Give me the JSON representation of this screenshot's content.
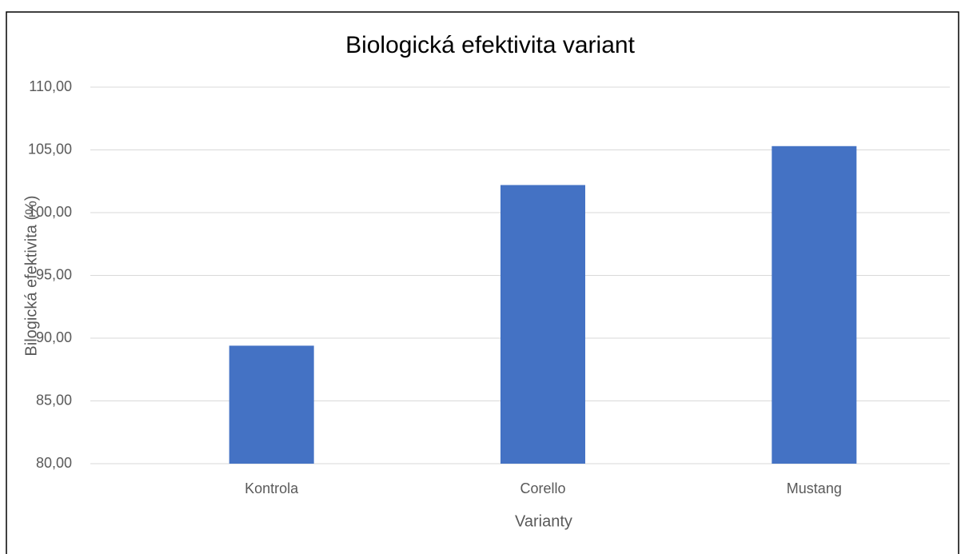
{
  "chart_data": {
    "type": "bar",
    "title": "Biologická efektivita variant",
    "x_label": "Varianty",
    "y_label": "Bilogická efektivita (%)",
    "categories": [
      "Kontrola",
      "Corello",
      "Mustang"
    ],
    "values": [
      89.4,
      102.2,
      105.3
    ],
    "color": "#4472c4",
    "ylim": [
      80,
      110
    ],
    "yticks": [
      {
        "value": 80,
        "label": "80,00"
      },
      {
        "value": 85,
        "label": "85,00"
      },
      {
        "value": 90,
        "label": "90,00"
      },
      {
        "value": 95,
        "label": "95,00"
      },
      {
        "value": 100,
        "label": "100,00"
      },
      {
        "value": 105,
        "label": "105,00"
      },
      {
        "value": 110,
        "label": "110,00"
      }
    ],
    "grid": true
  }
}
